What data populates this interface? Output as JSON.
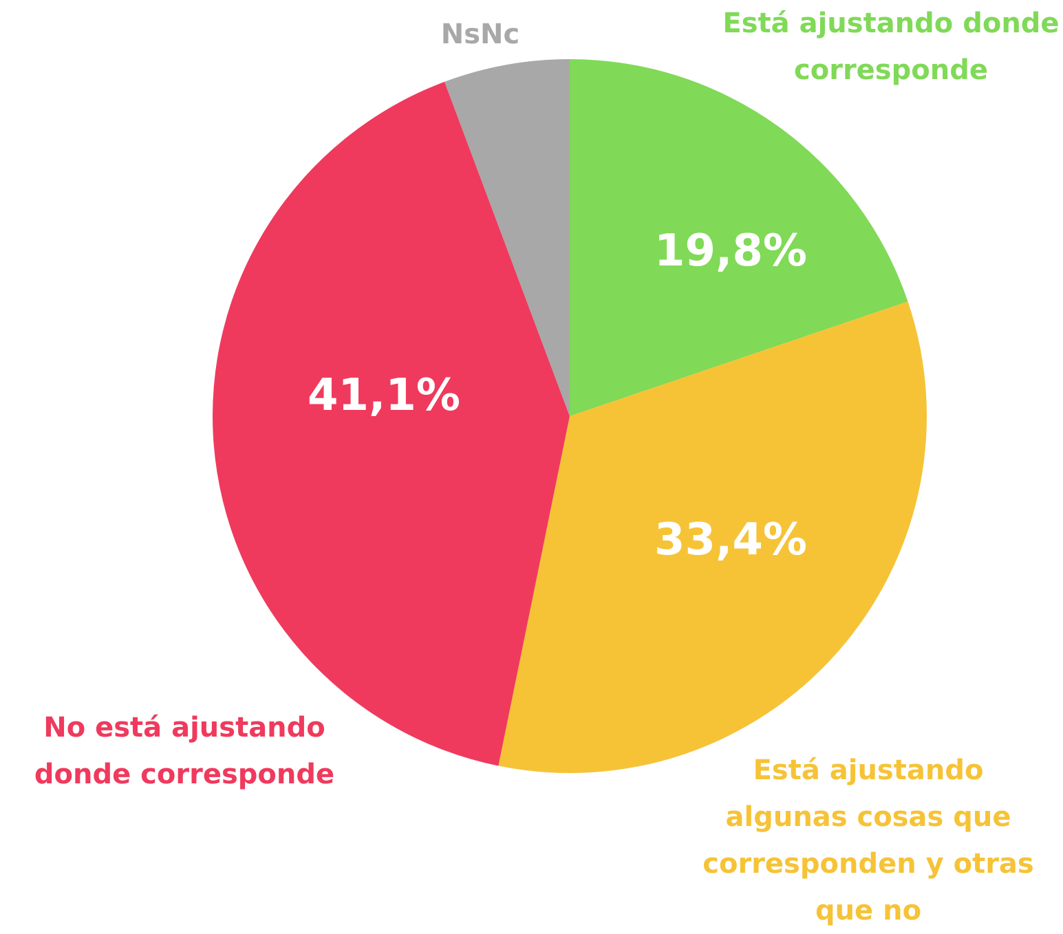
{
  "chart_data": {
    "type": "pie",
    "categories": [
      "Está ajustando donde corresponde",
      "Está ajustando algunas cosas que corresponden y otras que no",
      "No está ajustando donde corresponde",
      "NsNc"
    ],
    "values": [
      19.8,
      33.4,
      41.1,
      5.7
    ],
    "value_labels": [
      "19,8%",
      "33,4%",
      "41,1%",
      null
    ],
    "colors": [
      "#80d957",
      "#f6c337",
      "#ef3a5d",
      "#a8a8a8"
    ]
  }
}
